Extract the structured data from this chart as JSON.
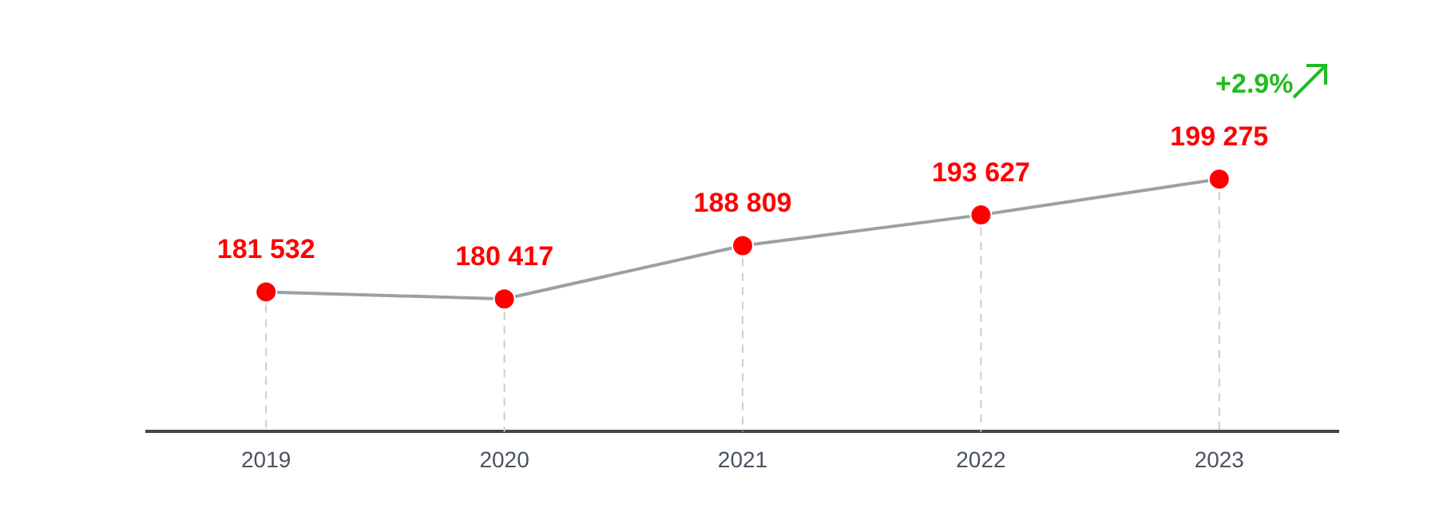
{
  "chart_data": {
    "type": "line",
    "categories": [
      "2019",
      "2020",
      "2021",
      "2022",
      "2023"
    ],
    "series": [
      {
        "color": "#9aa0a8",
        "values": [
          181532,
          180417,
          188809,
          193627,
          199275
        ]
      }
    ],
    "marker": "circle",
    "line_style": "solid",
    "grid": "x",
    "legend": false,
    "tick_labels": "x",
    "data_labels": true,
    "value_labels": [
      "181 532",
      "180 417",
      "188 809",
      "193 627",
      "199 275"
    ],
    "annotations": [
      "+2.9%"
    ]
  }
}
